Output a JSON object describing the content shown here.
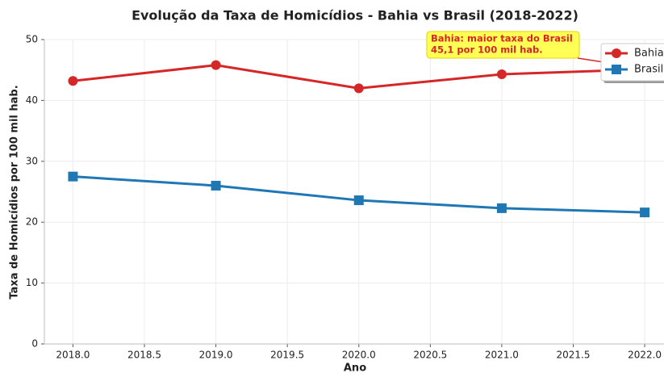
{
  "chart_data": {
    "type": "line",
    "title": "Evolução da Taxa de Homicídios - Bahia vs Brasil (2018-2022)",
    "x_label": "Ano",
    "y_label": "Taxa de Homicídios por 100 mil hab.",
    "x": [
      2018,
      2019,
      2020,
      2021,
      2022
    ],
    "series": [
      {
        "name": "Bahia",
        "color": "#d62728",
        "marker": "circle",
        "values": [
          43.2,
          45.8,
          42.0,
          44.3,
          45.1
        ]
      },
      {
        "name": "Brasil",
        "color": "#1f77b4",
        "marker": "square",
        "values": [
          27.5,
          26.0,
          23.6,
          22.3,
          21.6
        ]
      }
    ],
    "xlim": [
      2017.8,
      2022.2
    ],
    "xticks": [
      {
        "value": 2018,
        "label": "2018.0"
      },
      {
        "value": 2018.5,
        "label": "2018.5"
      },
      {
        "value": 2019,
        "label": "2019.0"
      },
      {
        "value": 2019.5,
        "label": "2019.5"
      },
      {
        "value": 2020,
        "label": "2020.0"
      },
      {
        "value": 2020.5,
        "label": "2020.5"
      },
      {
        "value": 2021,
        "label": "2021.0"
      },
      {
        "value": 2021.5,
        "label": "2021.5"
      },
      {
        "value": 2022,
        "label": "2022.0"
      }
    ],
    "ylim": [
      0,
      50
    ],
    "yticks": [
      0,
      10,
      20,
      30,
      40,
      50
    ],
    "grid": true,
    "legend": "upper right",
    "annotation": {
      "lines": [
        "Bahia: maior taxa do Brasil",
        "45,1 por 100 mil hab."
      ],
      "series": 0,
      "index": 4
    }
  }
}
